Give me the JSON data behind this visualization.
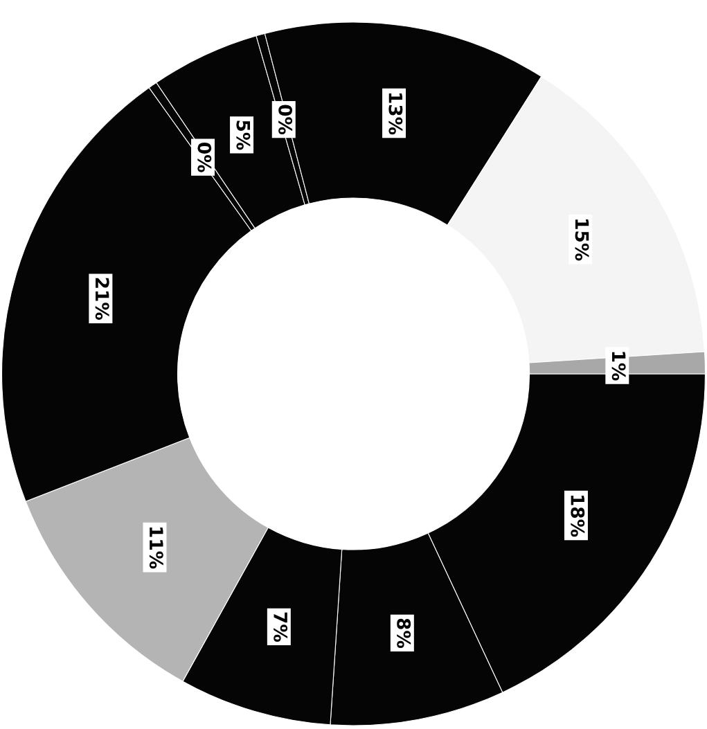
{
  "chart_data": {
    "type": "donut",
    "categories": [
      null,
      null,
      null,
      null,
      null,
      null,
      null,
      null,
      null,
      null,
      null
    ],
    "values": [
      18,
      8,
      7,
      11,
      21,
      0.4,
      5,
      0.4,
      13,
      15,
      1
    ],
    "value_labels": [
      "18%",
      "8%",
      "7%",
      "11%",
      "21%",
      "0%",
      "5%",
      "0%",
      "13%",
      "15%",
      "1%"
    ],
    "colors": [
      "#050505",
      "#050505",
      "#050505",
      "#b4b4b4",
      "#050505",
      "#050505",
      "#050505",
      "#050505",
      "#050505",
      "#f4f4f4",
      "#a8a8a8"
    ],
    "legend": false
  }
}
